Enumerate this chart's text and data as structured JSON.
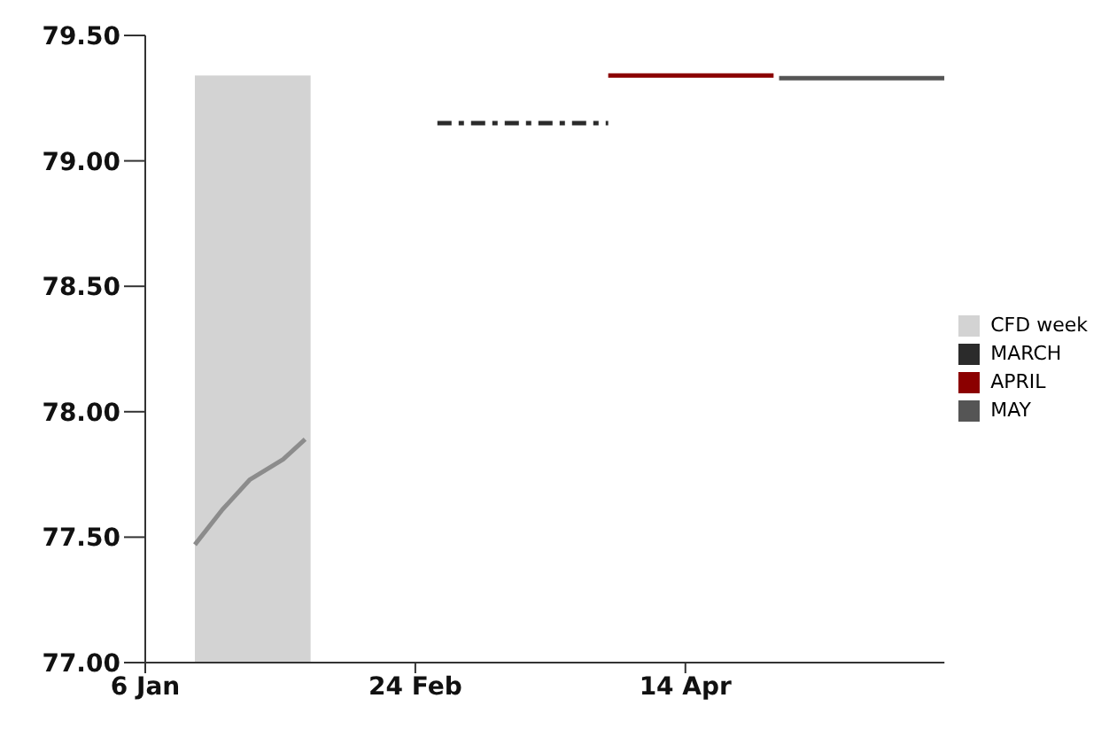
{
  "chart_data": {
    "type": "line",
    "xlim": [
      "--01-06",
      "--05-31"
    ],
    "xticks": [
      {
        "value": "--01-06",
        "label": "6 Jan"
      },
      {
        "value": "--02-24",
        "label": "24 Feb"
      },
      {
        "value": "--04-14",
        "label": "14 Apr"
      }
    ],
    "ylim": [
      77,
      79.5
    ],
    "yticks": [
      {
        "value": 77,
        "label": "77.00"
      },
      {
        "value": 77.5,
        "label": "77.50"
      },
      {
        "value": 78,
        "label": "78.00"
      },
      {
        "value": 78.5,
        "label": "78.50"
      },
      {
        "value": 79,
        "label": "79.00"
      },
      {
        "value": 79.5,
        "label": "79.50"
      }
    ],
    "grid": false,
    "legend": "right",
    "series": [
      {
        "name": "CFD week",
        "type": "area",
        "color": "#d3d3d3",
        "x": [
          "--01-15",
          "--02-05"
        ],
        "values": [
          79.34,
          79.34
        ]
      },
      {
        "color": "#8c8c8c",
        "x": [
          "--01-15",
          "--01-20",
          "--01-25",
          "--01-31",
          "--02-04"
        ],
        "values": [
          77.47,
          77.61,
          77.73,
          77.81,
          77.89
        ]
      },
      {
        "name": "MARCH",
        "color": "#2b2b2b",
        "line_style": "dashed",
        "x": [
          "--02-28",
          "--03-31"
        ],
        "values": [
          79.15,
          79.15
        ]
      },
      {
        "name": "APRIL",
        "color": "#8b0000",
        "x": [
          "--03-31",
          "--04-30"
        ],
        "values": [
          79.34,
          79.34
        ]
      },
      {
        "name": "MAY",
        "color": "#555555",
        "x": [
          "--05-01",
          "--05-31"
        ],
        "values": [
          79.33,
          79.33
        ]
      }
    ]
  }
}
